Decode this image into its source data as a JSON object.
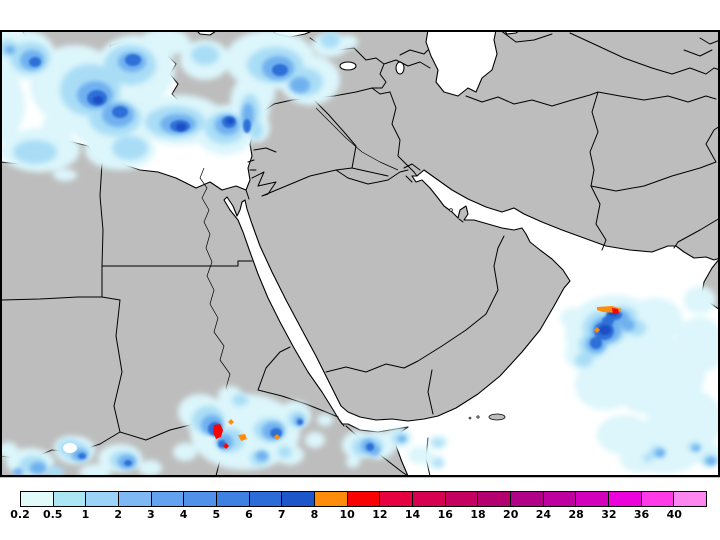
{
  "legend": {
    "labels": [
      "0.2",
      "0.5",
      "1",
      "2",
      "3",
      "4",
      "5",
      "6",
      "7",
      "8",
      "10",
      "12",
      "14",
      "16",
      "18",
      "20",
      "24",
      "28",
      "32",
      "36",
      "40"
    ],
    "cell_colors": [
      "#E1FBFB",
      "#ABE6F5",
      "#9CD2F7",
      "#7FB9F3",
      "#63A2EE",
      "#5092EA",
      "#3F81E3",
      "#2C6CD9",
      "#1D55CB",
      "#FF8D0A",
      "#F90302",
      "#E60141",
      "#D60150",
      "#C40160",
      "#B30170",
      "#B10188",
      "#BE019E",
      "#D301BC",
      "#EC02DA",
      "#FE3BE7",
      "#FE86F1"
    ],
    "outline_color": "#000000"
  },
  "map": {
    "land_color": "#BDBDBD",
    "sea_color": "#FFFFFF",
    "coast_color": "#000000",
    "frame_color": "#000000",
    "precip_levels": {
      "pale": "#DCF6FB",
      "light": "#A9DDF6",
      "mid": "#6FB0EF",
      "strong": "#2F6FD8",
      "dark": "#1C4EC4",
      "orange": "#FF8D0A",
      "red": "#F90302",
      "hole": "#FFFFFF"
    }
  }
}
